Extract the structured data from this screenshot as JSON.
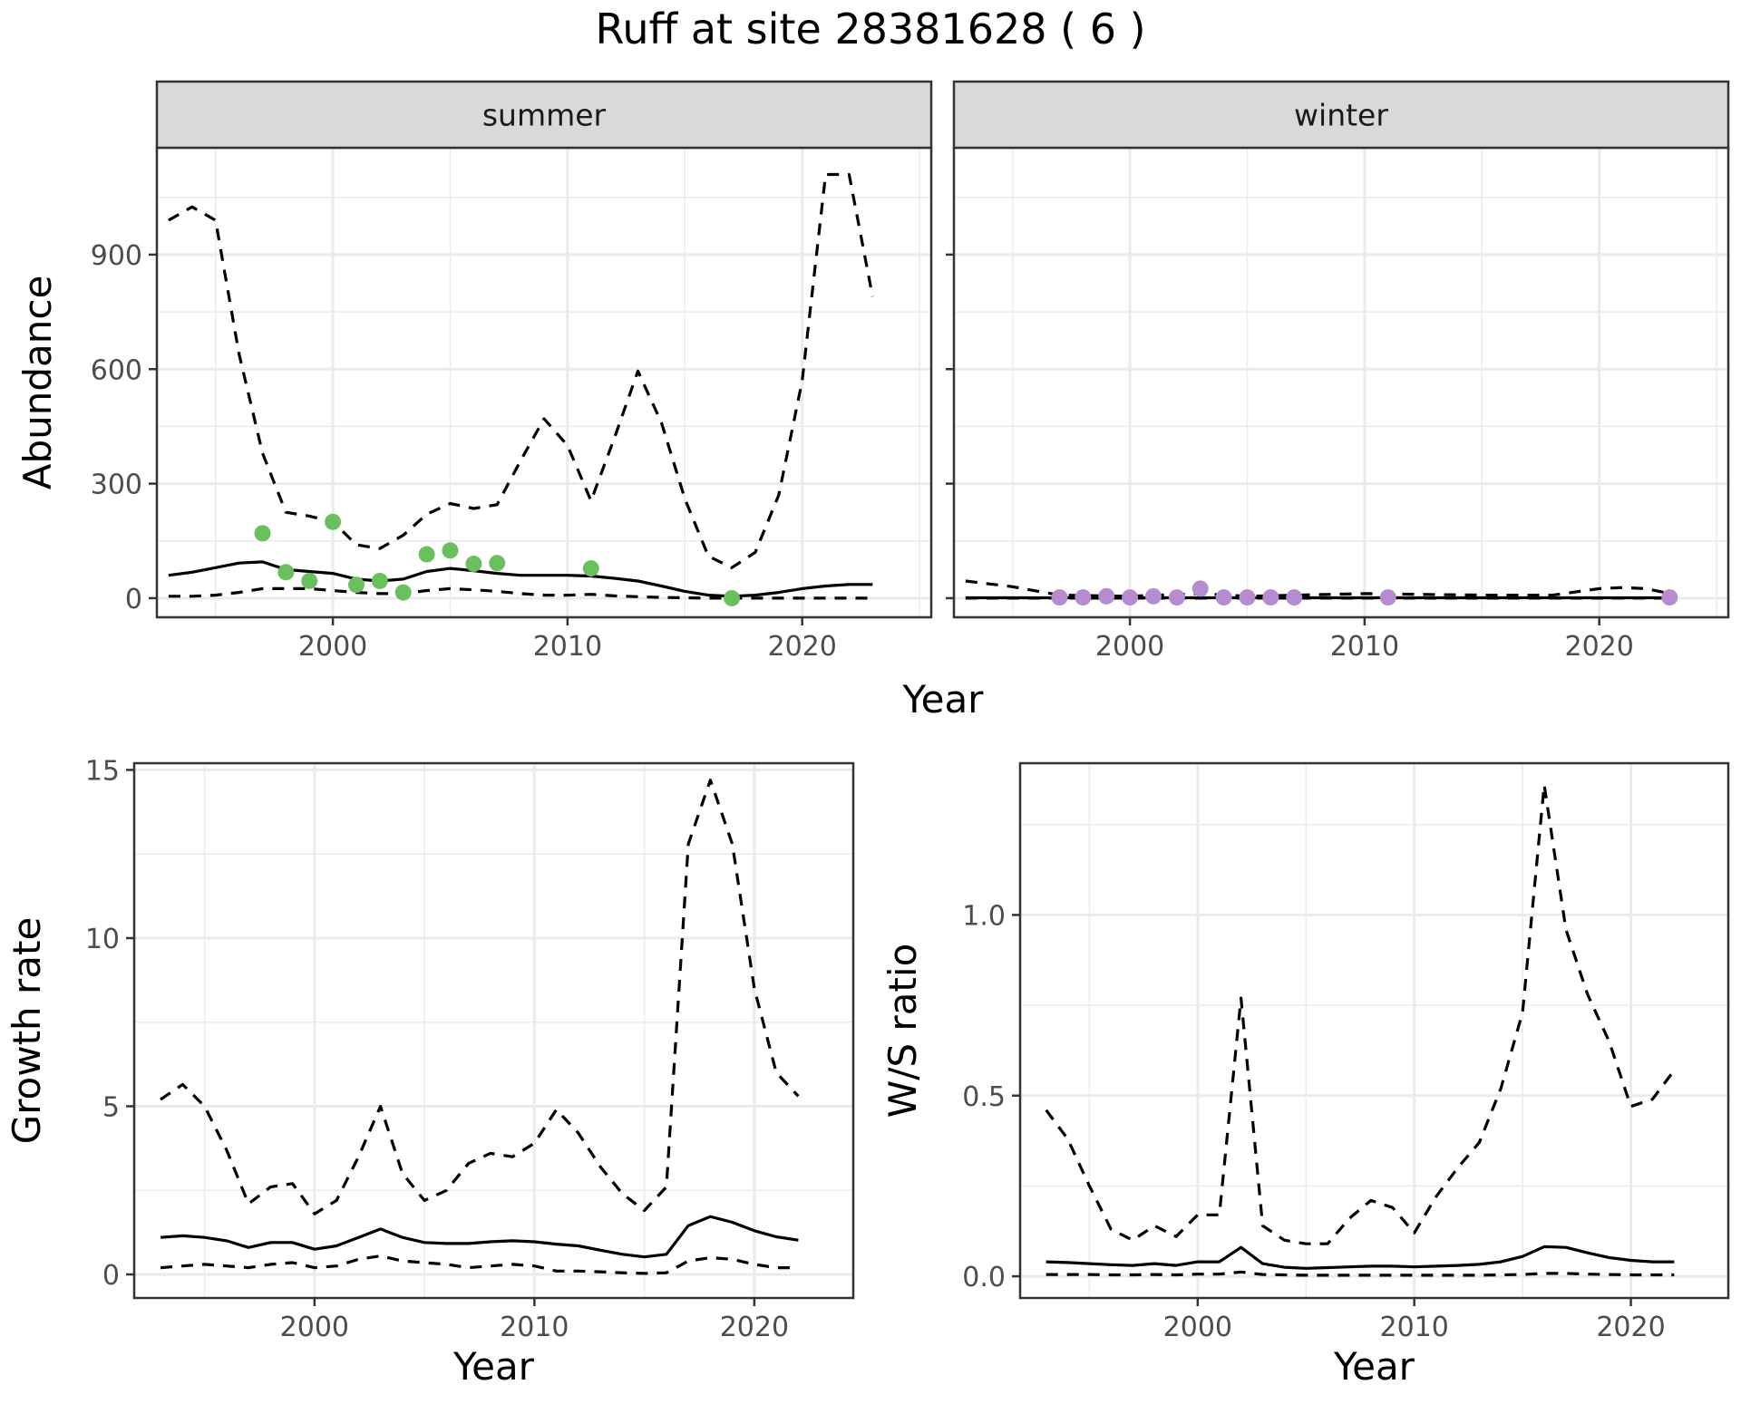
{
  "title": "Ruff at site 28381628 ( 6 )",
  "chart_data": [
    {
      "id": "abundance-summer",
      "type": "line",
      "facet": "summer",
      "ylabel": "Abundance",
      "xlabel": "",
      "xlim": [
        1992.5,
        2025.5
      ],
      "ylim": [
        -50,
        1180
      ],
      "xticks": [
        2000,
        2010,
        2020
      ],
      "yticks": [
        0,
        300,
        600,
        900
      ],
      "point_color": "#6abf5e",
      "series": [
        {
          "style": "solid",
          "x": [
            1993,
            1994,
            1995,
            1996,
            1997,
            1998,
            1999,
            2000,
            2001,
            2002,
            2003,
            2004,
            2005,
            2006,
            2007,
            2008,
            2009,
            2010,
            2011,
            2012,
            2013,
            2014,
            2015,
            2016,
            2017,
            2018,
            2019,
            2020,
            2021,
            2022,
            2023
          ],
          "values": [
            60,
            68,
            80,
            92,
            95,
            75,
            70,
            65,
            50,
            45,
            50,
            70,
            78,
            72,
            65,
            60,
            60,
            60,
            58,
            52,
            45,
            32,
            18,
            8,
            5,
            8,
            15,
            25,
            32,
            36,
            36
          ]
        },
        {
          "style": "dashed",
          "x": [
            1993,
            1994,
            1995,
            1996,
            1997,
            1998,
            1999,
            2000,
            2001,
            2002,
            2003,
            2004,
            2005,
            2006,
            2007,
            2008,
            2009,
            2010,
            2011,
            2012,
            2013,
            2014,
            2015,
            2016,
            2017,
            2018,
            2019,
            2020,
            2021,
            2022,
            2023
          ],
          "values": [
            990,
            1025,
            990,
            640,
            380,
            225,
            215,
            200,
            140,
            130,
            165,
            220,
            248,
            235,
            245,
            360,
            470,
            400,
            255,
            420,
            595,
            460,
            260,
            110,
            80,
            120,
            270,
            570,
            1110,
            1110,
            790
          ]
        },
        {
          "style": "dashed",
          "x": [
            1993,
            1994,
            1995,
            1996,
            1997,
            1998,
            1999,
            2000,
            2001,
            2002,
            2003,
            2004,
            2005,
            2006,
            2007,
            2008,
            2009,
            2010,
            2011,
            2012,
            2013,
            2014,
            2015,
            2016,
            2017,
            2018,
            2019,
            2020,
            2021,
            2022,
            2023
          ],
          "values": [
            5,
            5,
            8,
            15,
            25,
            25,
            25,
            20,
            15,
            12,
            12,
            20,
            25,
            22,
            18,
            12,
            8,
            8,
            10,
            6,
            4,
            2,
            1,
            0,
            0,
            0,
            0,
            0,
            0,
            0,
            0
          ]
        },
        {
          "style": "points",
          "x": [
            1997,
            1998,
            1999,
            2000,
            2001,
            2002,
            2003,
            2004,
            2005,
            2006,
            2007,
            2011,
            2017
          ],
          "values": [
            170,
            68,
            45,
            200,
            35,
            45,
            15,
            115,
            125,
            90,
            92,
            78,
            0
          ]
        }
      ]
    },
    {
      "id": "abundance-winter",
      "type": "line",
      "facet": "winter",
      "ylabel": "",
      "xlabel": "",
      "xlim": [
        1992.5,
        2025.5
      ],
      "ylim": [
        -50,
        1180
      ],
      "xticks": [
        2000,
        2010,
        2020
      ],
      "yticks": [
        0,
        300,
        600,
        900
      ],
      "point_color": "#b48ccf",
      "series": [
        {
          "style": "solid",
          "x": [
            1993,
            1995,
            2000,
            2005,
            2010,
            2015,
            2020,
            2023
          ],
          "values": [
            1,
            1,
            1,
            1,
            1,
            1,
            1,
            1
          ]
        },
        {
          "style": "dashed",
          "x": [
            1993,
            1995,
            1997,
            2000,
            2003,
            2005,
            2010,
            2015,
            2018,
            2020,
            2021,
            2022,
            2023
          ],
          "values": [
            45,
            30,
            8,
            5,
            12,
            5,
            12,
            8,
            8,
            25,
            28,
            25,
            12
          ]
        },
        {
          "style": "dashed",
          "x": [
            1993,
            2000,
            2010,
            2023
          ],
          "values": [
            0,
            0,
            0,
            0
          ]
        },
        {
          "style": "points",
          "x": [
            1997,
            1998,
            1999,
            2000,
            2001,
            2002,
            2003,
            2004,
            2005,
            2006,
            2007,
            2011,
            2023
          ],
          "values": [
            2,
            2,
            5,
            2,
            5,
            2,
            25,
            2,
            2,
            2,
            2,
            2,
            2
          ]
        }
      ]
    },
    {
      "id": "growth-rate",
      "type": "line",
      "ylabel": "Growth rate",
      "xlabel": "Year",
      "xlim": [
        1991.8,
        2024.5
      ],
      "ylim": [
        -0.7,
        15.2
      ],
      "xticks": [
        2000,
        2010,
        2020
      ],
      "yticks": [
        0,
        5,
        10,
        15
      ],
      "series": [
        {
          "style": "solid",
          "x": [
            1993,
            1994,
            1995,
            1996,
            1997,
            1998,
            1999,
            2000,
            2001,
            2002,
            2003,
            2004,
            2005,
            2006,
            2007,
            2008,
            2009,
            2010,
            2011,
            2012,
            2013,
            2014,
            2015,
            2016,
            2017,
            2018,
            2019,
            2020,
            2021,
            2022
          ],
          "values": [
            1.1,
            1.15,
            1.1,
            1.0,
            0.8,
            0.95,
            0.95,
            0.75,
            0.85,
            1.1,
            1.35,
            1.1,
            0.95,
            0.92,
            0.92,
            0.97,
            1.0,
            0.97,
            0.9,
            0.85,
            0.72,
            0.6,
            0.52,
            0.6,
            1.45,
            1.72,
            1.55,
            1.3,
            1.12,
            1.02
          ]
        },
        {
          "style": "dashed",
          "x": [
            1993,
            1994,
            1995,
            1996,
            1997,
            1998,
            1999,
            2000,
            2001,
            2002,
            2003,
            2004,
            2005,
            2006,
            2007,
            2008,
            2009,
            2010,
            2011,
            2012,
            2013,
            2014,
            2015,
            2016,
            2017,
            2018,
            2019,
            2020,
            2021,
            2022
          ],
          "values": [
            5.2,
            5.65,
            5.0,
            3.7,
            2.1,
            2.6,
            2.7,
            1.8,
            2.2,
            3.5,
            5.0,
            3.0,
            2.2,
            2.5,
            3.3,
            3.6,
            3.5,
            3.9,
            4.9,
            4.2,
            3.2,
            2.4,
            1.9,
            2.6,
            12.8,
            14.7,
            12.8,
            8.5,
            6.0,
            5.3
          ]
        },
        {
          "style": "dashed",
          "x": [
            1993,
            1994,
            1995,
            1996,
            1997,
            1998,
            1999,
            2000,
            2001,
            2002,
            2003,
            2004,
            2005,
            2006,
            2007,
            2008,
            2009,
            2010,
            2011,
            2012,
            2013,
            2014,
            2015,
            2016,
            2017,
            2018,
            2019,
            2020,
            2021,
            2022
          ],
          "values": [
            0.2,
            0.25,
            0.3,
            0.25,
            0.2,
            0.3,
            0.35,
            0.2,
            0.25,
            0.45,
            0.55,
            0.4,
            0.35,
            0.3,
            0.2,
            0.25,
            0.3,
            0.25,
            0.1,
            0.1,
            0.08,
            0.05,
            0.03,
            0.05,
            0.4,
            0.5,
            0.45,
            0.3,
            0.2,
            0.2
          ]
        }
      ]
    },
    {
      "id": "ws-ratio",
      "type": "line",
      "ylabel": "W/S ratio",
      "xlabel": "Year",
      "xlim": [
        1991.8,
        2024.5
      ],
      "ylim": [
        -0.06,
        1.42
      ],
      "xticks": [
        2000,
        2010,
        2020
      ],
      "yticks": [
        0.0,
        0.5,
        1.0
      ],
      "ytick_labels": [
        "0.0",
        "0.5",
        "1.0"
      ],
      "series": [
        {
          "style": "solid",
          "x": [
            1993,
            1994,
            1995,
            1996,
            1997,
            1998,
            1999,
            2000,
            2001,
            2002,
            2003,
            2004,
            2005,
            2006,
            2007,
            2008,
            2009,
            2010,
            2011,
            2012,
            2013,
            2014,
            2015,
            2016,
            2017,
            2018,
            2019,
            2020,
            2021,
            2022
          ],
          "values": [
            0.04,
            0.038,
            0.035,
            0.032,
            0.03,
            0.035,
            0.03,
            0.04,
            0.04,
            0.08,
            0.035,
            0.025,
            0.022,
            0.024,
            0.026,
            0.028,
            0.028,
            0.026,
            0.028,
            0.03,
            0.033,
            0.04,
            0.055,
            0.082,
            0.08,
            0.065,
            0.052,
            0.044,
            0.04,
            0.04
          ]
        },
        {
          "style": "dashed",
          "x": [
            1993,
            1994,
            1995,
            1996,
            1997,
            1998,
            1999,
            2000,
            2001,
            2002,
            2003,
            2004,
            2005,
            2006,
            2007,
            2008,
            2009,
            2010,
            2011,
            2012,
            2013,
            2014,
            2015,
            2016,
            2017,
            2018,
            2019,
            2020,
            2021,
            2022
          ],
          "values": [
            0.46,
            0.38,
            0.25,
            0.13,
            0.1,
            0.14,
            0.11,
            0.17,
            0.17,
            0.77,
            0.14,
            0.1,
            0.09,
            0.09,
            0.16,
            0.21,
            0.19,
            0.12,
            0.22,
            0.3,
            0.37,
            0.52,
            0.73,
            1.36,
            0.96,
            0.78,
            0.65,
            0.47,
            0.49,
            0.57
          ]
        },
        {
          "style": "dashed",
          "x": [
            1993,
            1994,
            1995,
            1996,
            1997,
            1998,
            1999,
            2000,
            2001,
            2002,
            2003,
            2004,
            2005,
            2006,
            2007,
            2008,
            2009,
            2010,
            2011,
            2012,
            2013,
            2014,
            2015,
            2016,
            2017,
            2018,
            2019,
            2020,
            2021,
            2022
          ],
          "values": [
            0.005,
            0.005,
            0.005,
            0.004,
            0.004,
            0.005,
            0.004,
            0.006,
            0.006,
            0.012,
            0.005,
            0.004,
            0.003,
            0.003,
            0.003,
            0.003,
            0.003,
            0.003,
            0.003,
            0.003,
            0.003,
            0.004,
            0.005,
            0.008,
            0.008,
            0.006,
            0.005,
            0.004,
            0.004,
            0.004
          ]
        }
      ]
    }
  ]
}
